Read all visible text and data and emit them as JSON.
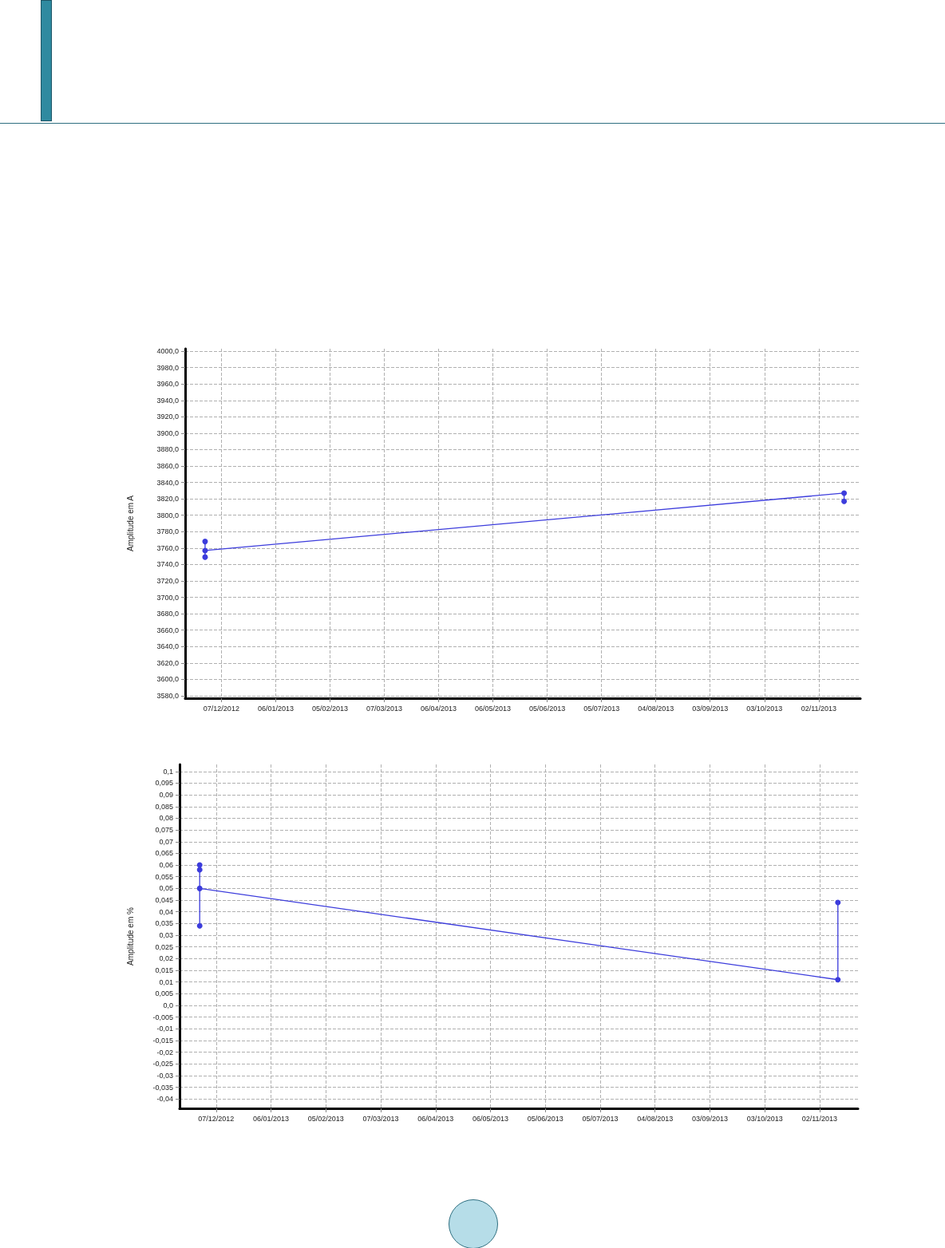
{
  "chart_data": [
    {
      "type": "line",
      "ylabel": "Amplitude em A",
      "grid": true,
      "marker": "circle",
      "line_style": "solid",
      "x": [
        "2012-11-28",
        "2012-11-28",
        "2012-11-28",
        "2013-11-16",
        "2013-11-16"
      ],
      "series": [
        {
          "color": "#3c3cdc",
          "values": [
            3768,
            3749,
            3757,
            3827,
            3817
          ]
        }
      ],
      "xlim": [
        "2012-11-17",
        "2013-11-25"
      ],
      "xticks": [
        {
          "value": "2012-12-07",
          "label": "07/12/2012"
        },
        {
          "value": "2013-01-06",
          "label": "06/01/2013"
        },
        {
          "value": "2013-02-05",
          "label": "05/02/2013"
        },
        {
          "value": "2013-03-07",
          "label": "07/03/2013"
        },
        {
          "value": "2013-04-06",
          "label": "06/04/2013"
        },
        {
          "value": "2013-05-06",
          "label": "06/05/2013"
        },
        {
          "value": "2013-06-05",
          "label": "05/06/2013"
        },
        {
          "value": "2013-07-05",
          "label": "05/07/2013"
        },
        {
          "value": "2013-08-04",
          "label": "04/08/2013"
        },
        {
          "value": "2013-09-03",
          "label": "03/09/2013"
        },
        {
          "value": "2013-10-03",
          "label": "03/10/2013"
        },
        {
          "value": "2013-11-02",
          "label": "02/11/2013"
        }
      ],
      "ylim": [
        3577,
        4003
      ],
      "yticks": [
        {
          "value": 3580,
          "label": "3580,0"
        },
        {
          "value": 3600,
          "label": "3600,0"
        },
        {
          "value": 3620,
          "label": "3620,0"
        },
        {
          "value": 3640,
          "label": "3640,0"
        },
        {
          "value": 3660,
          "label": "3660,0"
        },
        {
          "value": 3680,
          "label": "3680,0"
        },
        {
          "value": 3700,
          "label": "3700,0"
        },
        {
          "value": 3720,
          "label": "3720,0"
        },
        {
          "value": 3740,
          "label": "3740,0"
        },
        {
          "value": 3760,
          "label": "3760,0"
        },
        {
          "value": 3780,
          "label": "3780,0"
        },
        {
          "value": 3800,
          "label": "3800,0"
        },
        {
          "value": 3820,
          "label": "3820,0"
        },
        {
          "value": 3840,
          "label": "3840,0"
        },
        {
          "value": 3860,
          "label": "3860,0"
        },
        {
          "value": 3880,
          "label": "3880,0"
        },
        {
          "value": 3900,
          "label": "3900,0"
        },
        {
          "value": 3920,
          "label": "3920,0"
        },
        {
          "value": 3940,
          "label": "3940,0"
        },
        {
          "value": 3960,
          "label": "3960,0"
        },
        {
          "value": 3980,
          "label": "3980,0"
        },
        {
          "value": 4000,
          "label": "4000,0"
        }
      ]
    },
    {
      "type": "line",
      "ylabel": "Amplitude em %",
      "grid": true,
      "marker": "circle",
      "line_style": "solid",
      "x": [
        "2012-11-28",
        "2012-11-28",
        "2012-11-28",
        "2012-11-28",
        "2013-11-12",
        "2013-11-12"
      ],
      "series": [
        {
          "color": "#3c3cdc",
          "values": [
            0.06,
            0.058,
            0.034,
            0.05,
            0.011,
            0.044
          ]
        }
      ],
      "xlim": [
        "2012-11-17",
        "2013-11-23"
      ],
      "xticks": [
        {
          "value": "2012-12-07",
          "label": "07/12/2012"
        },
        {
          "value": "2013-01-06",
          "label": "06/01/2013"
        },
        {
          "value": "2013-02-05",
          "label": "05/02/2013"
        },
        {
          "value": "2013-03-07",
          "label": "07/03/2013"
        },
        {
          "value": "2013-04-06",
          "label": "06/04/2013"
        },
        {
          "value": "2013-05-06",
          "label": "06/05/2013"
        },
        {
          "value": "2013-06-05",
          "label": "05/06/2013"
        },
        {
          "value": "2013-07-05",
          "label": "05/07/2013"
        },
        {
          "value": "2013-08-04",
          "label": "04/08/2013"
        },
        {
          "value": "2013-09-03",
          "label": "03/09/2013"
        },
        {
          "value": "2013-10-03",
          "label": "03/10/2013"
        },
        {
          "value": "2013-11-02",
          "label": "02/11/2013"
        }
      ],
      "ylim": [
        -0.044,
        0.103
      ],
      "yticks": [
        {
          "value": -0.04,
          "label": "-0,04"
        },
        {
          "value": -0.035,
          "label": "-0,035"
        },
        {
          "value": -0.03,
          "label": "-0,03"
        },
        {
          "value": -0.025,
          "label": "-0,025"
        },
        {
          "value": -0.02,
          "label": "-0,02"
        },
        {
          "value": -0.015,
          "label": "-0,015"
        },
        {
          "value": -0.01,
          "label": "-0,01"
        },
        {
          "value": -0.005,
          "label": "-0,005"
        },
        {
          "value": 0,
          "label": "0,0"
        },
        {
          "value": 0.005,
          "label": "0,005"
        },
        {
          "value": 0.01,
          "label": "0,01"
        },
        {
          "value": 0.015,
          "label": "0,015"
        },
        {
          "value": 0.02,
          "label": "0,02"
        },
        {
          "value": 0.025,
          "label": "0,025"
        },
        {
          "value": 0.03,
          "label": "0,03"
        },
        {
          "value": 0.035,
          "label": "0,035"
        },
        {
          "value": 0.04,
          "label": "0,04"
        },
        {
          "value": 0.045,
          "label": "0,045"
        },
        {
          "value": 0.05,
          "label": "0,05"
        },
        {
          "value": 0.055,
          "label": "0,055"
        },
        {
          "value": 0.06,
          "label": "0,06"
        },
        {
          "value": 0.065,
          "label": "0,065"
        },
        {
          "value": 0.07,
          "label": "0,07"
        },
        {
          "value": 0.075,
          "label": "0,075"
        },
        {
          "value": 0.08,
          "label": "0,08"
        },
        {
          "value": 0.085,
          "label": "0,085"
        },
        {
          "value": 0.09,
          "label": "0,09"
        },
        {
          "value": 0.095,
          "label": "0,095"
        },
        {
          "value": 0.1,
          "label": "0,1"
        }
      ]
    }
  ]
}
